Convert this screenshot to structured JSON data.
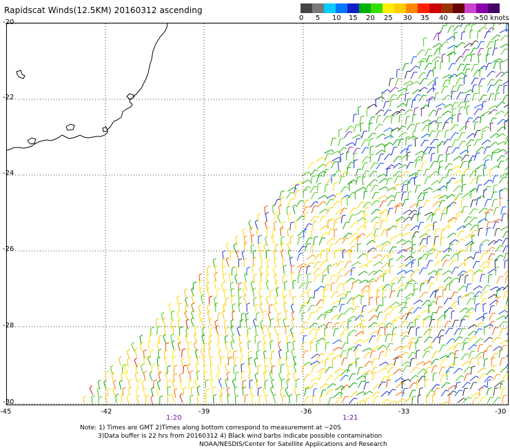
{
  "title": "Rapidscat Winds(12.5KM) 20160312 ascending",
  "colorbar": {
    "colors": [
      "#444444",
      "#7a7a7a",
      "#00ccff",
      "#0077ff",
      "#1020c8",
      "#00b000",
      "#33dd00",
      "#ffee00",
      "#ffcc00",
      "#ff8800",
      "#ff2200",
      "#cc0000",
      "#993300",
      "#660000",
      "#cc44cc",
      "#8800aa",
      "#440066"
    ],
    "labels": [
      "0",
      "5",
      "10",
      "15",
      "20",
      "25",
      "30",
      "35",
      "40",
      "45",
      ">50 knots"
    ]
  },
  "map": {
    "latitudes": [
      "-20",
      "-22",
      "-24",
      "-26",
      "-28",
      "-30"
    ],
    "longitudes": [
      "-45",
      "-42",
      "-39",
      "-36",
      "-33",
      "-30"
    ],
    "times": [
      "1:20",
      "1:21"
    ]
  },
  "notes": {
    "line1": "Note: 1) Times are GMT 2)Times along bottom correspond to measurement at ~20S",
    "line2": "3)Data buffer is 22 hrs from 20160312 4) Black wind barbs indicate possible contamination",
    "line3": "NOAA/NESDIS/Center for Satellite Applications and Research"
  }
}
